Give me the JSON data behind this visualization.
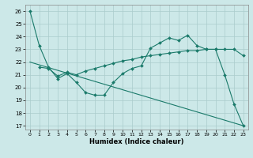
{
  "xlabel": "Humidex (Indice chaleur)",
  "xlim": [
    -0.5,
    23.5
  ],
  "ylim": [
    16.7,
    26.5
  ],
  "yticks": [
    17,
    18,
    19,
    20,
    21,
    22,
    23,
    24,
    25,
    26
  ],
  "xticks": [
    0,
    1,
    2,
    3,
    4,
    5,
    6,
    7,
    8,
    9,
    10,
    11,
    12,
    13,
    14,
    15,
    16,
    17,
    18,
    19,
    20,
    21,
    22,
    23
  ],
  "bg_color": "#cce8e8",
  "grid_color": "#aacccc",
  "line_color": "#1a7a6a",
  "line1_x": [
    0,
    1,
    2,
    3,
    4,
    5,
    6,
    7,
    8,
    9,
    10,
    11,
    12,
    13,
    14,
    15,
    16,
    17,
    18,
    19,
    20,
    21,
    22,
    23
  ],
  "line1_y": [
    26.0,
    23.3,
    21.6,
    20.7,
    21.1,
    20.4,
    19.6,
    19.4,
    19.4,
    20.4,
    21.1,
    21.5,
    21.7,
    23.1,
    23.5,
    23.9,
    23.7,
    24.1,
    23.3,
    23.0,
    23.0,
    21.0,
    18.7,
    17.0
  ],
  "line2_x": [
    1,
    2,
    3,
    4,
    5,
    6,
    7,
    8,
    9,
    10,
    11,
    12,
    13,
    14,
    15,
    16,
    17,
    18,
    19,
    20,
    21,
    22,
    23
  ],
  "line2_y": [
    21.6,
    21.5,
    20.9,
    21.2,
    21.0,
    21.3,
    21.5,
    21.7,
    21.9,
    22.1,
    22.2,
    22.4,
    22.5,
    22.6,
    22.7,
    22.8,
    22.9,
    22.9,
    23.0,
    23.0,
    23.0,
    23.0,
    22.5
  ],
  "line3_x": [
    0,
    23
  ],
  "line3_y": [
    22.0,
    17.0
  ]
}
